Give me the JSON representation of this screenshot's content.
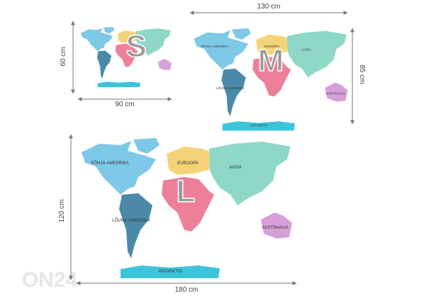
{
  "watermark": "ON24",
  "maps": [
    {
      "size": "S",
      "width": "90 cm",
      "height": "60 cm"
    },
    {
      "size": "M",
      "width": "130 cm",
      "height": "85 cm",
      "labels": [
        "PÕHJA-AMEERIKA",
        "EUROOPA",
        "AASIA",
        "LÕUNA-AMEERIKA",
        "AUSTRAALIA",
        "ANTARKTIS"
      ]
    },
    {
      "size": "L",
      "width": "180 cm",
      "height": "120 cm",
      "labels": [
        "PÕHJA-AMEERIKA",
        "EUROOPA",
        "AASIA",
        "LÕUNA-AMEERIKA",
        "AUSTRAALIA",
        "ANTARKTIS"
      ]
    }
  ]
}
